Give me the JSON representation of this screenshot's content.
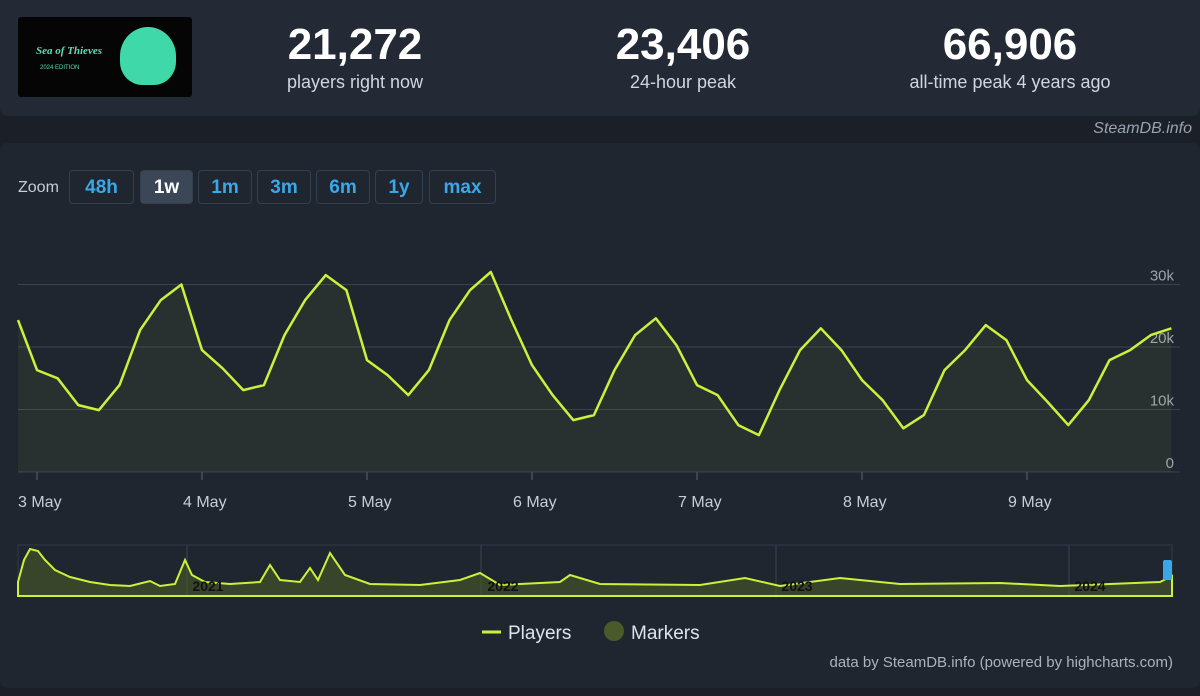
{
  "logo": {
    "title": "Sea of Thieves",
    "subtitle": "2024 EDITION"
  },
  "stats": [
    {
      "value": "21,272",
      "label": "players right now"
    },
    {
      "value": "23,406",
      "label": "24-hour peak"
    },
    {
      "value": "66,906",
      "label": "all-time peak 4 years ago"
    }
  ],
  "source": "SteamDB.info",
  "zoom": {
    "label": "Zoom",
    "buttons": [
      "48h",
      "1w",
      "1m",
      "3m",
      "6m",
      "1y",
      "max"
    ],
    "active": "1w"
  },
  "navigator": {
    "years": [
      "2021",
      "2022",
      "2023",
      "2024"
    ]
  },
  "credit": "data by SteamDB.info (powered by highcharts.com)",
  "chart_data": {
    "type": "line",
    "categories": [
      null,
      "3 May",
      null,
      null,
      null,
      null,
      null,
      null,
      null,
      "4 May",
      null,
      null,
      null,
      null,
      null,
      null,
      null,
      "5 May",
      null,
      null,
      null,
      null,
      null,
      null,
      null,
      "6 May",
      null,
      null,
      null,
      null,
      null,
      null,
      null,
      "7 May",
      null,
      null,
      null,
      null,
      null,
      null,
      null,
      "8 May",
      null,
      null,
      null,
      null,
      null,
      null,
      null,
      "9 May",
      null,
      null,
      null,
      null,
      null,
      null,
      null
    ],
    "series": [
      {
        "name": "Players",
        "color": "#cdf03a",
        "values": [
          24300,
          16300,
          15000,
          10700,
          9900,
          13900,
          22700,
          27500,
          30000,
          19500,
          16600,
          13100,
          13900,
          21900,
          27500,
          31500,
          29100,
          17900,
          15500,
          12300,
          16300,
          24300,
          29100,
          32000,
          24300,
          17100,
          12300,
          8300,
          9100,
          16300,
          21900,
          24600,
          20300,
          13900,
          12300,
          7500,
          5900,
          13100,
          19500,
          23000,
          19500,
          14700,
          11500,
          7000,
          9100,
          16300,
          19500,
          23500,
          21100,
          14700,
          11200,
          7500,
          11500,
          17900,
          19500,
          21900,
          23000
        ]
      }
    ],
    "ylim": [
      0,
      40000
    ],
    "yticks": [
      0,
      {
        "value": 10000,
        "label": "10k"
      },
      {
        "value": 20000,
        "label": "20k"
      },
      {
        "value": 30000,
        "label": "30k"
      }
    ],
    "grid": true,
    "marker_legend": "Markers"
  }
}
